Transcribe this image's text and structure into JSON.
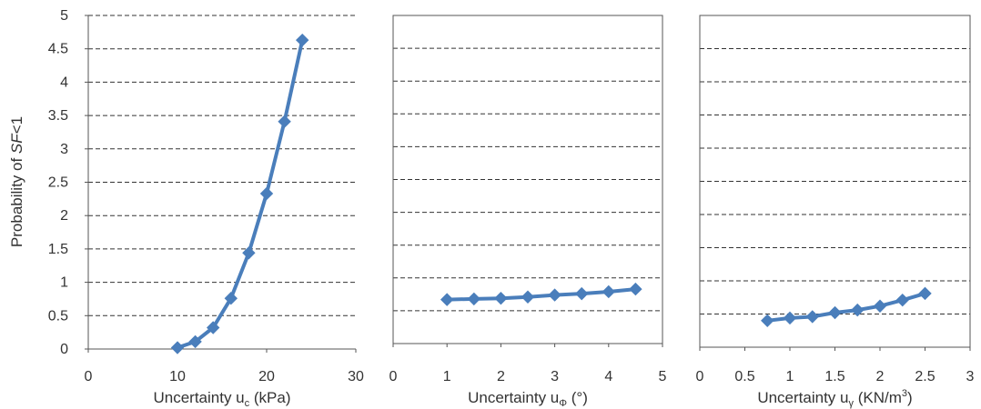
{
  "y_axis_label": {
    "prefix": "Probability of ",
    "italic": "SF",
    "suffix": "<1"
  },
  "colors": {
    "series": "#4a7ebb",
    "grid": "#333333",
    "axis": "#555555",
    "text": "#333333"
  },
  "chart_data": [
    {
      "type": "line",
      "marker": "diamond",
      "xlabel": {
        "text": "Uncertainty u",
        "sub": "c",
        "unit": " (kPa)"
      },
      "xlim": [
        0,
        30
      ],
      "ylim": [
        0,
        5
      ],
      "x_ticks": [
        "0",
        "10",
        "20",
        "30"
      ],
      "y_ticks": [
        "0",
        "0.5",
        "1",
        "1.5",
        "2",
        "2.5",
        "3",
        "3.5",
        "4",
        "4.5",
        "5"
      ],
      "grid": "horizontal dashed",
      "series": [
        {
          "x": [
            10,
            12,
            14,
            16,
            18,
            20,
            22,
            24
          ],
          "y": [
            0.02,
            0.11,
            0.32,
            0.76,
            1.44,
            2.33,
            3.41,
            4.63
          ]
        }
      ]
    },
    {
      "type": "line",
      "marker": "diamond",
      "xlabel": {
        "text": "Uncertainty u",
        "sub": "Φ",
        "unit": " (°)"
      },
      "xlim": [
        0,
        5
      ],
      "ylim": [
        0,
        5
      ],
      "x_ticks": [
        "0",
        "1",
        "2",
        "3",
        "4",
        "5"
      ],
      "y_ticks": [],
      "grid": "horizontal dashed",
      "series": [
        {
          "x": [
            1,
            1.5,
            2,
            2.5,
            3,
            3.5,
            4,
            4.5
          ],
          "y": [
            0.67,
            0.68,
            0.69,
            0.71,
            0.74,
            0.76,
            0.79,
            0.83
          ]
        }
      ]
    },
    {
      "type": "line",
      "marker": "diamond",
      "xlabel": {
        "text": "Uncertainty u",
        "sub": "γ",
        "unit": " (KN/m",
        "sup": "3",
        "unit_end": ")"
      },
      "xlim": [
        0,
        3
      ],
      "ylim": [
        0,
        5
      ],
      "x_ticks": [
        "0",
        "0.5",
        "1",
        "1.5",
        "2",
        "2.5",
        "3"
      ],
      "y_ticks": [],
      "grid": "horizontal dashed",
      "series": [
        {
          "x": [
            0.75,
            1,
            1.25,
            1.5,
            1.75,
            2,
            2.25,
            2.5
          ],
          "y": [
            0.4,
            0.44,
            0.46,
            0.52,
            0.56,
            0.62,
            0.71,
            0.81
          ]
        }
      ]
    }
  ]
}
